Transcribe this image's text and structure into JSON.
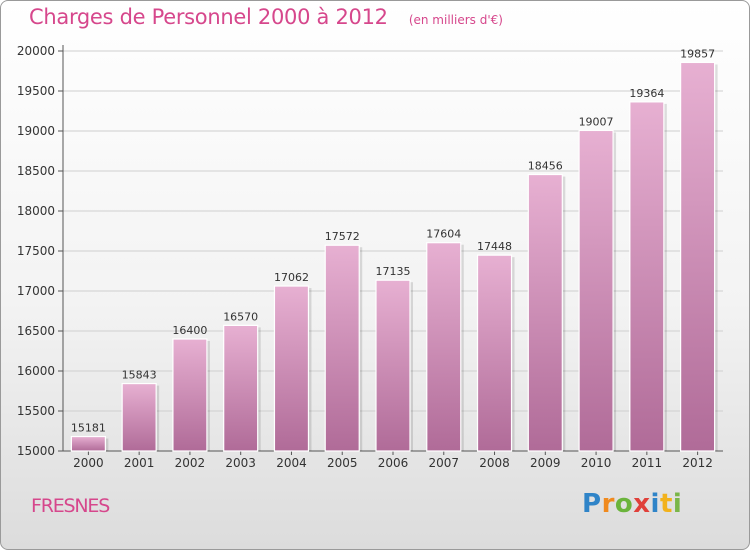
{
  "header": {
    "title": "Charges de Personnel 2000 à 2012",
    "unit_note": "(en milliers d'€)"
  },
  "footer": {
    "city": "FRESNES",
    "brand": {
      "letters": [
        "P",
        "r",
        "o",
        "x",
        "i",
        "t",
        "i"
      ],
      "colors": [
        "#2f84c8",
        "#f08a1e",
        "#6bb43c",
        "#e0403a",
        "#2f84c8",
        "#f2b21c",
        "#7ab648"
      ]
    }
  },
  "colors": {
    "bar_light": "#e7b0d2",
    "bar_dark": "#b06b98",
    "grid": "#cfcfcf",
    "title": "#d6478c"
  },
  "chart_data": {
    "type": "bar",
    "title": "Charges de Personnel 2000 à 2012",
    "subtitle": "(en milliers d'€)",
    "xlabel": "",
    "ylabel": "",
    "categories": [
      "2000",
      "2001",
      "2002",
      "2003",
      "2004",
      "2005",
      "2006",
      "2007",
      "2008",
      "2009",
      "2010",
      "2011",
      "2012"
    ],
    "values": [
      15181,
      15843,
      16400,
      16570,
      17062,
      17572,
      17135,
      17604,
      17448,
      18456,
      19007,
      19364,
      19857
    ],
    "ylim": [
      15000,
      20000
    ],
    "yticks": [
      15000,
      15500,
      16000,
      16500,
      17000,
      17500,
      18000,
      18500,
      19000,
      19500,
      20000
    ],
    "grid": true,
    "legend": "none",
    "data_labels": true
  }
}
